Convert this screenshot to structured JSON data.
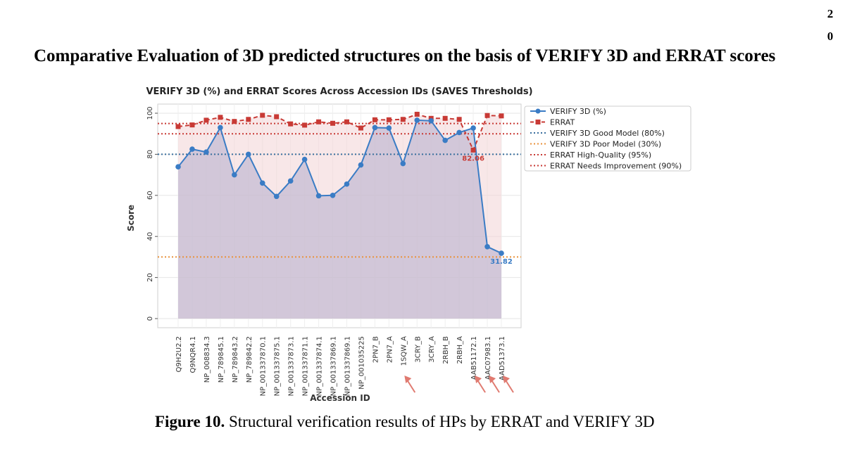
{
  "page": {
    "number_digits": [
      "2",
      "0"
    ],
    "heading": "Comparative Evaluation of 3D predicted structures on the basis of VERIFY 3D and ERRAT scores",
    "caption_prefix": "Figure 10.",
    "caption_text": " Structural verification results of HPs by ERRAT and VERIFY 3D"
  },
  "chart_data": {
    "type": "line",
    "title": "VERIFY 3D (%) and ERRAT Scores Across Accession IDs (SAVES Thresholds)",
    "xlabel": "Accession ID",
    "ylabel": "Score",
    "ylim": [
      0,
      100
    ],
    "yticks": [
      0,
      20,
      40,
      60,
      80,
      100
    ],
    "grid": true,
    "legend_position": "top-right",
    "categories": [
      "Q9H2U2.2",
      "Q9NQR4.1",
      "NP_008834.3",
      "NP_789845.1",
      "NP_789843.2",
      "NP_789842.2",
      "NP_001337870.1",
      "NP_001337875.1",
      "NP_001337873.1",
      "NP_001337871.1",
      "NP_001337874.1",
      "NP_001337869.1",
      "NP_001337869.1",
      "NP_001035225",
      "2PN7_B",
      "2PN7_A",
      "1SQW_A",
      "3CRY_B",
      "3CRY_A",
      "2RBH_B",
      "2RBH_A",
      "AAB51172.1",
      "AAC07983.1",
      "AAD51373.1"
    ],
    "series": [
      {
        "name": "VERIFY 3D (%)",
        "color": "#3a7cc5",
        "style": "solid",
        "marker": "circle",
        "values": [
          73.9,
          82.5,
          81.1,
          93.0,
          70.0,
          80.0,
          66.0,
          59.5,
          67.0,
          77.5,
          59.8,
          60.0,
          65.5,
          74.8,
          93.0,
          92.8,
          75.5,
          96.6,
          96.3,
          86.8,
          90.6,
          92.8,
          35.0,
          31.82
        ]
      },
      {
        "name": "ERRAT",
        "color": "#c83a35",
        "style": "dashed",
        "marker": "square",
        "values": [
          93.5,
          94.3,
          96.6,
          98.0,
          96.0,
          97.0,
          99.0,
          98.3,
          94.8,
          94.2,
          95.8,
          95.1,
          95.8,
          92.8,
          96.8,
          96.8,
          97.0,
          99.5,
          97.5,
          97.5,
          97.0,
          82.06,
          98.9,
          98.7
        ]
      }
    ],
    "thresholds": [
      {
        "name": "VERIFY 3D Good Model (80%)",
        "value": 80,
        "color": "#3a6f9e"
      },
      {
        "name": "VERIFY 3D Poor Model (30%)",
        "value": 30,
        "color": "#e8923c"
      },
      {
        "name": "ERRAT High-Quality (95%)",
        "value": 95,
        "color": "#c83a35"
      },
      {
        "name": "ERRAT Needs Improvement (90%)",
        "value": 90,
        "color": "#c83a35"
      }
    ],
    "annotations": [
      {
        "text": "82.06",
        "category": "AAB51172.1",
        "series": "ERRAT",
        "color": "#c83a35"
      },
      {
        "text": "31.82",
        "category": "AAD51373.1",
        "series": "VERIFY 3D (%)",
        "color": "#3a7cc5"
      }
    ],
    "arrow_categories": [
      "1SQW_A",
      "AAB51172.1",
      "AAC07983.1",
      "AAD51373.1"
    ],
    "arrow_color": "#e07a70",
    "fill_colors": {
      "verify_area": "#b9b3cf",
      "errat_area": "#f3d4d6"
    }
  }
}
